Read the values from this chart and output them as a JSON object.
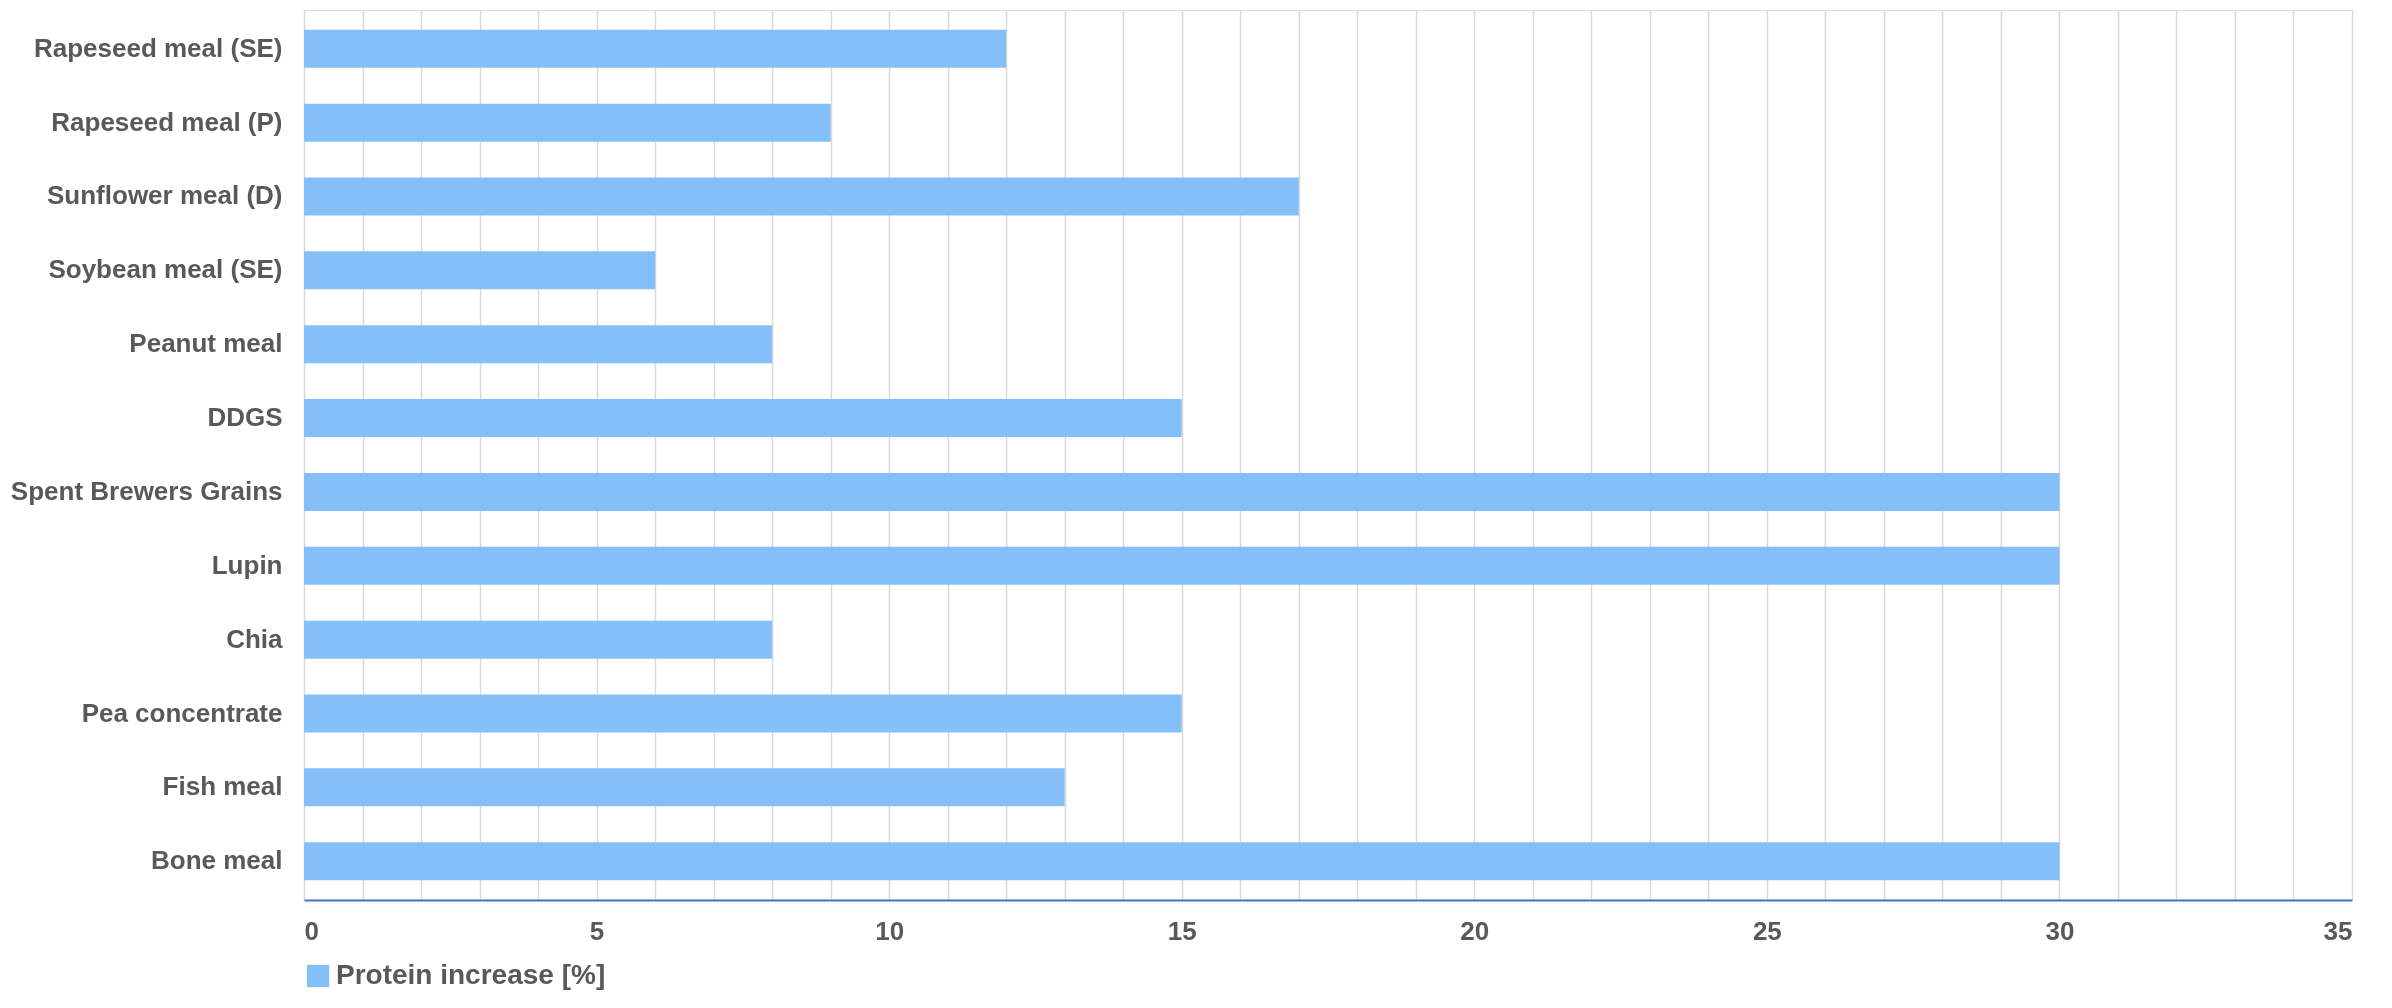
{
  "chart_data": {
    "type": "bar",
    "orientation": "horizontal",
    "categories": [
      "Rapeseed meal (SE)",
      "Rapeseed meal (P)",
      "Sunflower meal (D)",
      "Soybean meal (SE)",
      "Peanut meal",
      "DDGS",
      "Spent Brewers Grains",
      "Lupin",
      "Chia",
      "Pea concentrate",
      "Fish meal",
      "Bone meal"
    ],
    "series": [
      {
        "name": "Protein increase [%]",
        "color": "#85bff9",
        "values": [
          12,
          9,
          17,
          6,
          8,
          15,
          30,
          30,
          8,
          15,
          13,
          30
        ]
      }
    ],
    "xlim": [
      0,
      35
    ],
    "xticks": [
      0,
      {
        "value": 1,
        "label": null
      },
      {
        "value": 2,
        "label": null
      },
      {
        "value": 3,
        "label": null
      },
      {
        "value": 4,
        "label": null
      },
      5,
      {
        "value": 6,
        "label": null
      },
      {
        "value": 7,
        "label": null
      },
      {
        "value": 8,
        "label": null
      },
      {
        "value": 9,
        "label": null
      },
      10,
      {
        "value": 11,
        "label": null
      },
      {
        "value": 12,
        "label": null
      },
      {
        "value": 13,
        "label": null
      },
      {
        "value": 14,
        "label": null
      },
      15,
      {
        "value": 16,
        "label": null
      },
      {
        "value": 17,
        "label": null
      },
      {
        "value": 18,
        "label": null
      },
      {
        "value": 19,
        "label": null
      },
      20,
      {
        "value": 21,
        "label": null
      },
      {
        "value": 22,
        "label": null
      },
      {
        "value": 23,
        "label": null
      },
      {
        "value": 24,
        "label": null
      },
      25,
      {
        "value": 26,
        "label": null
      },
      {
        "value": 27,
        "label": null
      },
      {
        "value": 28,
        "label": null
      },
      {
        "value": 29,
        "label": null
      },
      30,
      {
        "value": 31,
        "label": null
      },
      {
        "value": 32,
        "label": null
      },
      {
        "value": 33,
        "label": null
      },
      {
        "value": 34,
        "label": null
      },
      35
    ],
    "grid": "x",
    "legend": "bottom"
  }
}
